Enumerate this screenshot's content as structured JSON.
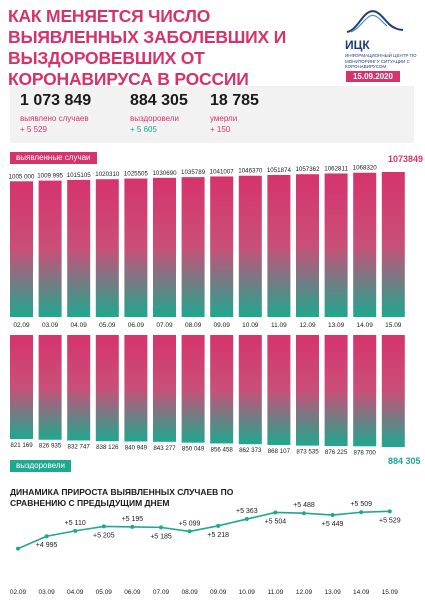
{
  "header": {
    "title": "КАК МЕНЯЕТСЯ ЧИСЛО ВЫЯВЛЕННЫХ ЗАБОЛЕВШИХ И ВЫЗДОРОВЕВШИХ ОТ КОРОНАВИРУСА В РОССИИ",
    "logo_name": "ИЦК",
    "logo_subtitle": "ИНФОРМАЦИОННЫЙ ЦЕНТР ПО МОНИТОРИНГУ СИТУАЦИИ С КОРОНАВИРУСОМ",
    "date": "15.09.2020"
  },
  "colors": {
    "pink": "#d6336c",
    "teal": "#1ea88f",
    "dark": "#1a1a1a",
    "grey": "#f2f2f2"
  },
  "summary": [
    {
      "value": "1 073 849",
      "label": "выявлено случаев",
      "delta": "+ 5 529"
    },
    {
      "value": "884 305",
      "label": "выздоровели",
      "delta": "+ 5 605"
    },
    {
      "value": "18 785",
      "label": "умерли",
      "delta": "+ 150"
    }
  ],
  "chart_data": [
    {
      "type": "bar",
      "name": "выявленные случаи",
      "categories": [
        "02.09",
        "03.09",
        "04.09",
        "05.09",
        "06.09",
        "07.09",
        "08.09",
        "09.09",
        "10.09",
        "11.09",
        "12.09",
        "13.09",
        "14.09",
        "15.09"
      ],
      "values": [
        1005000,
        1009995,
        1015105,
        1020310,
        1025505,
        1030690,
        1035789,
        1041007,
        1046370,
        1051874,
        1057362,
        1062811,
        1068320,
        1073849
      ],
      "value_labels": [
        "1005 000",
        "1009 995",
        "1015105",
        "1020310",
        "1025505",
        "1030690",
        "1035789",
        "1041007",
        "1046370",
        "1051874",
        "1057362",
        "1062811",
        "1068320",
        "1073849"
      ]
    },
    {
      "type": "bar",
      "name": "выздоровели",
      "categories": [
        "02.09",
        "03.09",
        "04.09",
        "05.09",
        "06.09",
        "07.09",
        "08.09",
        "09.09",
        "10.09",
        "11.09",
        "12.09",
        "13.09",
        "14.09",
        "15.09"
      ],
      "values": [
        821169,
        826935,
        832747,
        838126,
        840949,
        843277,
        850049,
        856458,
        862373,
        868107,
        873535,
        876225,
        878700,
        884305
      ],
      "value_labels": [
        "821 169",
        "826 935",
        "832 747",
        "838 126",
        "840 949",
        "843 277",
        "850 049",
        "856 458",
        "862 373",
        "868 107",
        "873 535",
        "876 225",
        "878 700",
        "884 305"
      ]
    },
    {
      "type": "line",
      "title": "ДИНАМИКА ПРИРОСТА ВЫЯВЛЕННЫХ СЛУЧАЕВ ПО СРАВНЕНИЮ С ПРЕДЫДУЩИМ ДНЕМ",
      "categories": [
        "02.09",
        "03.09",
        "04.09",
        "05.09",
        "06.09",
        "07.09",
        "08.09",
        "09.09",
        "10.09",
        "11.09",
        "12.09",
        "13.09",
        "14.09",
        "15.09"
      ],
      "values": [
        4729,
        4995,
        5110,
        5205,
        5195,
        5185,
        5099,
        5218,
        5363,
        5504,
        5488,
        5449,
        5509,
        5529
      ],
      "value_labels": [
        "",
        "+4 995",
        "+5 110",
        "+5 205",
        "+5 195",
        "+5 185",
        "+5 099",
        "+5 218",
        "+5 363",
        "+5 504",
        "+5 488",
        "+5 449",
        "+5 509",
        "+5 529"
      ]
    }
  ]
}
